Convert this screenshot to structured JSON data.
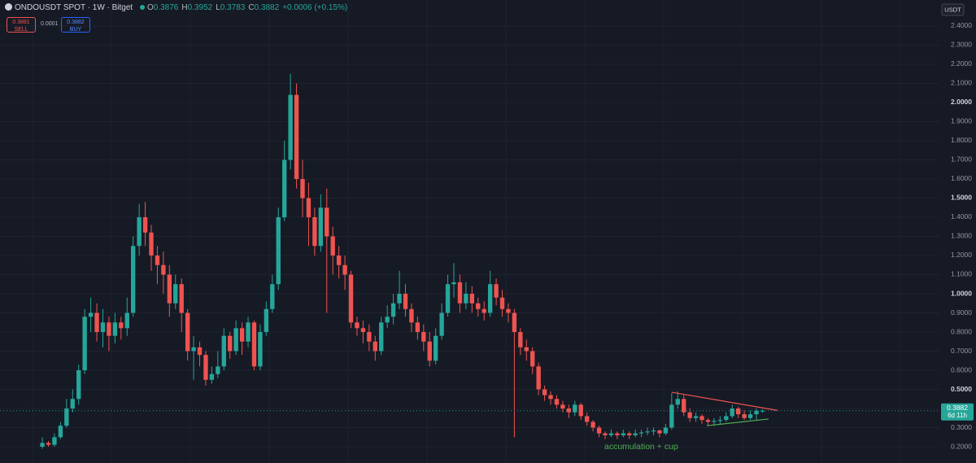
{
  "chart_data": {
    "type": "candlestick",
    "title": "ONDOUSDT SPOT · 1W · Bitget",
    "ohlc_labels": [
      "O",
      "H",
      "L",
      "C"
    ],
    "change": "+0.0006 (+0.15%)",
    "quote": {
      "sell": 0.3881,
      "sell_label": "SELL",
      "spread": 0.0001,
      "buy": 0.3882,
      "buy_label": "BUY"
    },
    "currency": "USDT",
    "countdown": "6d 11h",
    "annotation": "accumulation + cup",
    "up_color": "#26a69a",
    "down_color": "#ef5350",
    "grid": true,
    "xlim": [
      -7,
      148.24
    ],
    "ylim": [
      0.115,
      2.536
    ],
    "yticks": [
      {
        "value": 0.2,
        "label": "0.2000"
      },
      {
        "value": 0.3,
        "label": "0.3000"
      },
      {
        "value": 0.4,
        "label": "0.4000"
      },
      {
        "value": 0.5,
        "label": "0.5000"
      },
      {
        "value": 0.6,
        "label": "0.6000"
      },
      {
        "value": 0.7,
        "label": "0.7000"
      },
      {
        "value": 0.8,
        "label": "0.8000"
      },
      {
        "value": 0.9,
        "label": "0.9000"
      },
      {
        "value": 1.0,
        "label": "1.0000"
      },
      {
        "value": 1.1,
        "label": "1.1000"
      },
      {
        "value": 1.2,
        "label": "1.2000"
      },
      {
        "value": 1.3,
        "label": "1.3000"
      },
      {
        "value": 1.4,
        "label": "1.4000"
      },
      {
        "value": 1.5,
        "label": "1.5000"
      },
      {
        "value": 1.6,
        "label": "1.6000"
      },
      {
        "value": 1.7,
        "label": "1.7000"
      },
      {
        "value": 1.8,
        "label": "1.8000"
      },
      {
        "value": 1.9,
        "label": "1.9000"
      },
      {
        "value": 2.0,
        "label": "2.0000"
      },
      {
        "value": 2.1,
        "label": "2.1000"
      },
      {
        "value": 2.2,
        "label": "2.2000"
      },
      {
        "value": 2.3,
        "label": "2.3000"
      },
      {
        "value": 2.4,
        "label": "2.4000"
      }
    ],
    "open": [
      0.2,
      0.22,
      0.21,
      0.25,
      0.31,
      0.4,
      0.45,
      0.6,
      0.88,
      0.9,
      0.8,
      0.85,
      0.78,
      0.85,
      0.82,
      0.9,
      1.25,
      1.4,
      1.32,
      1.2,
      1.15,
      1.1,
      0.95,
      1.05,
      0.9,
      0.7,
      0.72,
      0.68,
      0.55,
      0.58,
      0.62,
      0.78,
      0.7,
      0.82,
      0.75,
      0.85,
      0.62,
      0.8,
      0.92,
      1.05,
      1.4,
      1.7,
      2.04,
      1.6,
      1.5,
      1.4,
      1.25,
      1.45,
      1.3,
      1.2,
      1.15,
      1.1,
      0.85,
      0.82,
      0.8,
      0.75,
      0.7,
      0.85,
      0.88,
      0.95,
      1.0,
      0.92,
      0.85,
      0.8,
      0.75,
      0.65,
      0.78,
      0.9,
      1.05,
      1.06,
      0.95,
      1.0,
      0.95,
      0.92,
      0.9,
      1.05,
      0.98,
      0.92,
      0.9,
      0.8,
      0.72,
      0.7,
      0.62,
      0.5,
      0.47,
      0.45,
      0.42,
      0.4,
      0.38,
      0.42,
      0.36,
      0.33,
      0.3,
      0.27,
      0.26,
      0.27,
      0.26,
      0.27,
      0.26,
      0.27,
      0.275,
      0.28,
      0.285,
      0.27,
      0.3,
      0.42,
      0.45,
      0.38,
      0.35,
      0.36,
      0.34,
      0.33,
      0.335,
      0.34,
      0.36,
      0.4,
      0.37,
      0.35,
      0.37,
      0.3876
    ],
    "high": [
      0.25,
      0.23,
      0.27,
      0.33,
      0.45,
      0.5,
      0.63,
      0.92,
      0.98,
      0.95,
      0.92,
      0.88,
      0.9,
      0.88,
      0.98,
      1.3,
      1.47,
      1.48,
      1.36,
      1.25,
      1.22,
      1.15,
      1.1,
      1.08,
      0.92,
      0.78,
      0.75,
      0.7,
      0.62,
      0.7,
      0.82,
      0.8,
      0.86,
      0.85,
      0.88,
      0.86,
      0.84,
      0.96,
      1.1,
      1.45,
      1.8,
      2.15,
      2.1,
      1.7,
      1.58,
      1.45,
      1.52,
      1.55,
      1.35,
      1.25,
      1.2,
      1.12,
      0.88,
      0.86,
      0.84,
      0.78,
      0.88,
      0.94,
      1.0,
      1.12,
      1.05,
      0.95,
      0.88,
      0.84,
      0.8,
      0.82,
      0.95,
      1.1,
      1.16,
      1.1,
      1.06,
      1.04,
      0.98,
      0.96,
      1.12,
      1.08,
      1.02,
      0.95,
      0.92,
      0.82,
      0.76,
      0.72,
      0.64,
      0.52,
      0.49,
      0.47,
      0.44,
      0.42,
      0.44,
      0.43,
      0.38,
      0.34,
      0.31,
      0.28,
      0.29,
      0.28,
      0.29,
      0.28,
      0.29,
      0.29,
      0.3,
      0.3,
      0.29,
      0.32,
      0.48,
      0.49,
      0.47,
      0.4,
      0.38,
      0.37,
      0.35,
      0.35,
      0.36,
      0.38,
      0.42,
      0.41,
      0.39,
      0.39,
      0.4,
      0.3952
    ],
    "low": [
      0.19,
      0.2,
      0.2,
      0.24,
      0.3,
      0.38,
      0.42,
      0.58,
      0.8,
      0.75,
      0.72,
      0.7,
      0.74,
      0.76,
      0.78,
      0.88,
      1.2,
      1.25,
      1.12,
      1.05,
      1.0,
      0.88,
      0.92,
      0.8,
      0.65,
      0.55,
      0.62,
      0.52,
      0.53,
      0.56,
      0.6,
      0.66,
      0.68,
      0.68,
      0.72,
      0.6,
      0.6,
      0.78,
      0.9,
      1.02,
      1.38,
      1.65,
      1.55,
      1.4,
      1.25,
      1.2,
      1.22,
      0.9,
      1.1,
      1.08,
      1.02,
      0.82,
      0.78,
      0.74,
      0.7,
      0.65,
      0.68,
      0.82,
      0.84,
      0.92,
      0.88,
      0.8,
      0.76,
      0.7,
      0.62,
      0.63,
      0.76,
      0.88,
      0.98,
      0.9,
      0.92,
      0.9,
      0.88,
      0.86,
      0.88,
      0.94,
      0.88,
      0.85,
      0.25,
      0.68,
      0.65,
      0.58,
      0.47,
      0.44,
      0.42,
      0.4,
      0.38,
      0.35,
      0.36,
      0.34,
      0.31,
      0.28,
      0.25,
      0.24,
      0.25,
      0.24,
      0.25,
      0.24,
      0.25,
      0.25,
      0.26,
      0.26,
      0.25,
      0.26,
      0.29,
      0.4,
      0.36,
      0.33,
      0.33,
      0.32,
      0.31,
      0.31,
      0.32,
      0.33,
      0.35,
      0.35,
      0.34,
      0.34,
      0.34,
      0.3783
    ],
    "close": [
      0.22,
      0.21,
      0.25,
      0.31,
      0.4,
      0.45,
      0.6,
      0.88,
      0.9,
      0.8,
      0.85,
      0.78,
      0.85,
      0.82,
      0.9,
      1.25,
      1.4,
      1.32,
      1.2,
      1.15,
      1.1,
      0.95,
      1.05,
      0.9,
      0.7,
      0.72,
      0.68,
      0.55,
      0.58,
      0.62,
      0.78,
      0.7,
      0.82,
      0.75,
      0.85,
      0.62,
      0.8,
      0.92,
      1.05,
      1.4,
      1.7,
      2.04,
      1.6,
      1.5,
      1.4,
      1.25,
      1.45,
      1.3,
      1.2,
      1.15,
      1.1,
      0.85,
      0.82,
      0.8,
      0.75,
      0.7,
      0.85,
      0.88,
      0.95,
      1.0,
      0.92,
      0.85,
      0.8,
      0.75,
      0.65,
      0.78,
      0.9,
      1.05,
      1.06,
      0.95,
      1.0,
      0.95,
      0.92,
      0.9,
      1.05,
      0.98,
      0.92,
      0.9,
      0.8,
      0.72,
      0.7,
      0.62,
      0.5,
      0.47,
      0.45,
      0.42,
      0.4,
      0.38,
      0.42,
      0.36,
      0.33,
      0.3,
      0.27,
      0.26,
      0.27,
      0.26,
      0.27,
      0.26,
      0.27,
      0.275,
      0.28,
      0.285,
      0.27,
      0.3,
      0.42,
      0.45,
      0.38,
      0.35,
      0.36,
      0.34,
      0.33,
      0.335,
      0.34,
      0.36,
      0.4,
      0.37,
      0.35,
      0.37,
      0.3876,
      0.3882
    ],
    "trendlines": [
      {
        "color": "#ef5350",
        "from": [
          104,
          0.485
        ],
        "to": [
          121.5,
          0.39
        ]
      },
      {
        "color": "#4caf50",
        "from": [
          109.8,
          0.31
        ],
        "to": [
          120,
          0.345
        ]
      }
    ]
  }
}
